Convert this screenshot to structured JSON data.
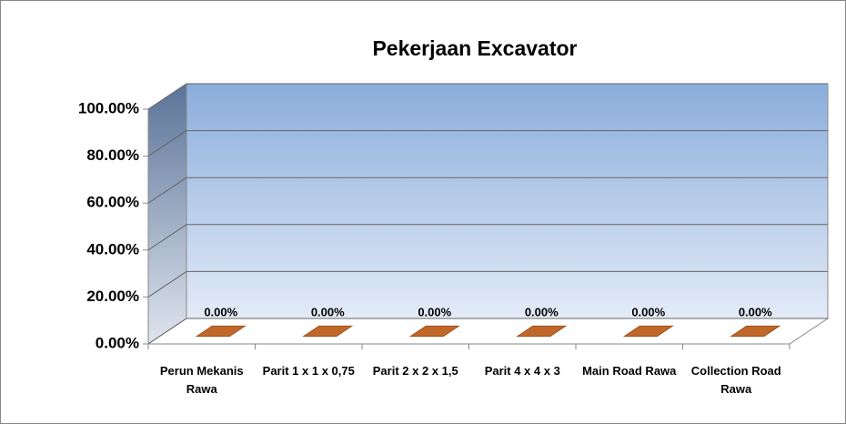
{
  "chart_data": {
    "type": "bar3d",
    "title": "Pekerjaan Excavator",
    "categories": [
      "Perun Mekanis Rawa",
      "Parit 1 x 1 x 0,75",
      "Parit 2 x 2 x 1,5",
      "Parit 4 x 4 x 3",
      "Main Road Rawa",
      "Collection Road Rawa"
    ],
    "values": [
      0,
      0,
      0,
      0,
      0,
      0
    ],
    "value_labels": [
      "0.00%",
      "0.00%",
      "0.00%",
      "0.00%",
      "0.00%",
      "0.00%"
    ],
    "color": "#c0682a",
    "ylim": [
      0,
      100
    ],
    "yticks": [
      {
        "value": 0,
        "label": "0.00%"
      },
      {
        "value": 20,
        "label": "20.00%"
      },
      {
        "value": 40,
        "label": "40.00%"
      },
      {
        "value": 60,
        "label": "60.00%"
      },
      {
        "value": 80,
        "label": "80.00%"
      },
      {
        "value": 100,
        "label": "100.00%"
      }
    ],
    "grid": true
  }
}
